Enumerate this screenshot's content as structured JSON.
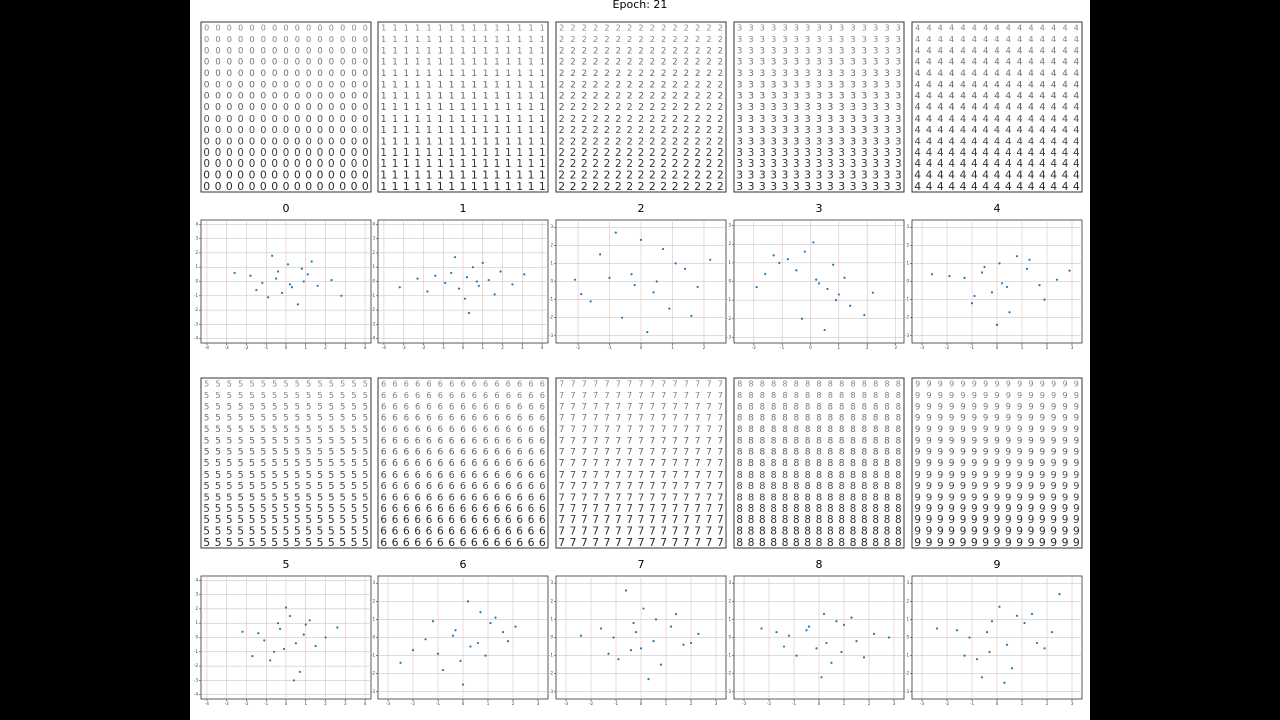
{
  "title": "Epoch: 21",
  "chart_data": [
    {
      "type": "scatter",
      "title": "0",
      "color": "#1f77b4",
      "xlim": [
        -4.3,
        4.3
      ],
      "ylim": [
        -4.3,
        4.3
      ],
      "xticks": [
        -4,
        -3,
        -2,
        -1,
        0,
        1,
        2,
        3,
        4
      ],
      "yticks": [
        -4,
        -3,
        -2,
        -1,
        0,
        1,
        2,
        3,
        4
      ],
      "grid": true,
      "x": [
        -0.5,
        0.3,
        1.1,
        -1.2,
        0.8,
        -0.2,
        1.6,
        -1.8,
        0.1,
        2.3,
        -0.9,
        0.6,
        -2.6,
        1.3,
        -0.4,
        0.2,
        -1.5,
        0.9,
        2.8,
        -0.7
      ],
      "values": [
        0.2,
        -0.4,
        0.5,
        -0.1,
        0.9,
        -0.8,
        -0.3,
        0.4,
        1.2,
        0.1,
        -1.1,
        -1.6,
        0.6,
        1.4,
        0.7,
        -0.2,
        -0.6,
        0.0,
        -1.0,
        1.8
      ]
    },
    {
      "type": "scatter",
      "title": "1",
      "color": "#1f77b4",
      "xlim": [
        -4.3,
        4.3
      ],
      "ylim": [
        -4.3,
        4.3
      ],
      "xticks": [
        -4,
        -3,
        -2,
        -1,
        0,
        1,
        2,
        3,
        4
      ],
      "yticks": [
        -4,
        -3,
        -2,
        -1,
        0,
        1,
        2,
        3,
        4
      ],
      "grid": true,
      "x": [
        0.2,
        -0.6,
        1.3,
        0.8,
        -1.4,
        1.9,
        -0.2,
        0.5,
        2.5,
        -2.3,
        1.0,
        -0.9,
        0.1,
        3.1,
        -1.8,
        0.7,
        1.6,
        -0.4,
        -3.2,
        0.3
      ],
      "values": [
        0.3,
        0.6,
        0.1,
        -0.3,
        0.4,
        0.7,
        -0.5,
        1.0,
        -0.2,
        0.2,
        1.3,
        -0.1,
        -1.2,
        0.5,
        -0.7,
        0.0,
        -0.9,
        1.7,
        -0.4,
        -2.2
      ]
    },
    {
      "type": "scatter",
      "title": "2",
      "color": "#1f77b4",
      "xlim": [
        -2.7,
        2.7
      ],
      "ylim": [
        -3.4,
        3.4
      ],
      "xticks": [
        -2,
        -1,
        0,
        1,
        2
      ],
      "yticks": [
        -3,
        -2,
        -1,
        0,
        1,
        2,
        3
      ],
      "grid": true,
      "x": [
        -0.3,
        0.4,
        1.1,
        -1.0,
        0.7,
        -1.6,
        1.8,
        0.0,
        -0.6,
        1.4,
        -2.1,
        0.9,
        -0.2,
        2.2,
        -1.3,
        0.5,
        0.2,
        -0.8,
        1.6,
        -1.9
      ],
      "values": [
        0.4,
        -0.6,
        1.0,
        0.2,
        1.8,
        -1.1,
        -0.3,
        2.3,
        -2.0,
        0.7,
        0.1,
        -1.5,
        -0.2,
        1.2,
        1.5,
        0.0,
        -2.8,
        2.7,
        -1.9,
        -0.7
      ]
    },
    {
      "type": "scatter",
      "title": "3",
      "color": "#1f77b4",
      "xlim": [
        -2.7,
        3.3
      ],
      "ylim": [
        -3.3,
        3.3
      ],
      "xticks": [
        -2,
        -1,
        0,
        1,
        2,
        3
      ],
      "yticks": [
        -3,
        -2,
        -1,
        0,
        1,
        2,
        3
      ],
      "grid": true,
      "x": [
        -0.5,
        0.2,
        1.0,
        -1.1,
        0.6,
        -0.2,
        1.4,
        -1.6,
        0.3,
        1.9,
        -0.8,
        0.9,
        -1.9,
        1.2,
        -0.3,
        0.1,
        2.2,
        -1.3,
        0.5,
        0.8
      ],
      "values": [
        0.6,
        0.1,
        -0.7,
        1.0,
        -0.4,
        1.6,
        -1.3,
        0.4,
        -0.1,
        -1.8,
        1.2,
        -1.0,
        -0.3,
        0.2,
        -2.0,
        2.1,
        -0.6,
        1.4,
        -2.6,
        0.9
      ]
    },
    {
      "type": "scatter",
      "title": "4",
      "color": "#1f77b4",
      "xlim": [
        -3.4,
        3.4
      ],
      "ylim": [
        -3.4,
        3.4
      ],
      "xticks": [
        -3,
        -2,
        -1,
        0,
        1,
        2,
        3
      ],
      "yticks": [
        -3,
        -2,
        -1,
        0,
        1,
        2,
        3
      ],
      "grid": true,
      "x": [
        -0.6,
        0.4,
        1.2,
        -1.3,
        0.1,
        -0.2,
        1.7,
        -1.9,
        0.8,
        2.4,
        -1.0,
        0.5,
        -2.6,
        1.3,
        -0.5,
        0.2,
        0.0,
        -0.9,
        1.9,
        2.9
      ],
      "values": [
        0.5,
        -0.3,
        0.7,
        0.2,
        1.0,
        -0.6,
        -0.2,
        0.3,
        1.4,
        0.1,
        -1.2,
        -1.7,
        0.4,
        1.2,
        0.8,
        -0.1,
        -2.4,
        -0.8,
        -1.0,
        0.6
      ]
    },
    {
      "type": "scatter",
      "title": "5",
      "color": "#1f77b4",
      "xlim": [
        -4.3,
        4.3
      ],
      "ylim": [
        -4.3,
        4.3
      ],
      "xticks": [
        -4,
        -3,
        -2,
        -1,
        0,
        1,
        2,
        3,
        4
      ],
      "yticks": [
        -4,
        -3,
        -2,
        -1,
        0,
        1,
        2,
        3,
        4
      ],
      "grid": true,
      "x": [
        -0.3,
        0.5,
        1.0,
        -1.1,
        0.2,
        -0.6,
        1.5,
        -1.4,
        0.0,
        2.0,
        -0.8,
        0.7,
        -2.2,
        1.2,
        -0.1,
        0.4,
        0.9,
        -0.4,
        2.6,
        -1.7
      ],
      "values": [
        0.6,
        -0.4,
        0.9,
        -0.2,
        1.5,
        -1.0,
        -0.6,
        0.3,
        2.1,
        0.0,
        -1.6,
        -2.4,
        0.4,
        1.2,
        -0.8,
        -3.0,
        0.2,
        1.0,
        0.7,
        -1.3
      ]
    },
    {
      "type": "scatter",
      "title": "6",
      "color": "#1f77b4",
      "xlim": [
        -3.4,
        3.4
      ],
      "ylim": [
        -3.4,
        3.4
      ],
      "xticks": [
        -3,
        -2,
        -1,
        0,
        1,
        2,
        3
      ],
      "yticks": [
        -3,
        -2,
        -1,
        0,
        1,
        2,
        3
      ],
      "grid": true,
      "x": [
        -0.4,
        0.3,
        1.1,
        -1.0,
        0.7,
        -0.1,
        1.6,
        -1.5,
        0.2,
        2.1,
        -0.8,
        0.6,
        -2.0,
        1.3,
        -0.3,
        0.0,
        0.9,
        -1.2,
        1.8,
        -2.5
      ],
      "values": [
        0.1,
        -0.5,
        0.8,
        -0.9,
        1.4,
        -1.3,
        0.3,
        -0.1,
        2.0,
        0.6,
        -1.8,
        -0.3,
        -0.7,
        1.1,
        0.4,
        -2.6,
        -1.0,
        0.9,
        -0.2,
        -1.4
      ]
    },
    {
      "type": "scatter",
      "title": "7",
      "color": "#1f77b4",
      "xlim": [
        -3.4,
        3.4
      ],
      "ylim": [
        -3.4,
        3.4
      ],
      "xticks": [
        -3,
        -2,
        -1,
        0,
        1,
        2,
        3
      ],
      "yticks": [
        -3,
        -2,
        -1,
        0,
        1,
        2,
        3
      ],
      "grid": true,
      "x": [
        -0.2,
        0.5,
        1.2,
        -1.1,
        0.6,
        -0.4,
        1.7,
        -1.6,
        0.1,
        2.3,
        -0.9,
        0.8,
        -2.4,
        1.4,
        -0.3,
        0.3,
        0.0,
        -1.3,
        2.0,
        -0.6
      ],
      "values": [
        0.3,
        -0.2,
        0.6,
        0.0,
        1.0,
        -0.7,
        -0.4,
        0.5,
        1.6,
        0.2,
        -1.2,
        -1.5,
        0.1,
        1.3,
        0.8,
        -2.3,
        -0.6,
        -0.9,
        -0.3,
        2.6
      ]
    },
    {
      "type": "scatter",
      "title": "8",
      "color": "#1f77b4",
      "xlim": [
        -3.4,
        3.4
      ],
      "ylim": [
        -3.4,
        3.4
      ],
      "xticks": [
        -3,
        -2,
        -1,
        0,
        1,
        2,
        3
      ],
      "yticks": [
        -3,
        -2,
        -1,
        0,
        1,
        2,
        3
      ],
      "grid": true,
      "x": [
        -0.5,
        0.3,
        1.0,
        -1.2,
        0.7,
        -0.1,
        1.5,
        -1.7,
        0.2,
        2.2,
        -0.9,
        0.5,
        -2.3,
        1.3,
        -0.4,
        0.1,
        0.9,
        -1.4,
        1.8,
        2.8
      ],
      "values": [
        0.4,
        -0.3,
        0.7,
        0.1,
        0.9,
        -0.6,
        -0.2,
        0.3,
        1.3,
        0.2,
        -1.0,
        -1.4,
        0.5,
        1.1,
        0.6,
        -2.2,
        -0.8,
        -0.5,
        -1.1,
        0.0
      ]
    },
    {
      "type": "scatter",
      "title": "9",
      "color": "#1f77b4",
      "xlim": [
        -3.4,
        3.4
      ],
      "ylim": [
        -3.4,
        3.4
      ],
      "xticks": [
        -3,
        -2,
        -1,
        0,
        1,
        2,
        3
      ],
      "yticks": [
        -3,
        -2,
        -1,
        0,
        1,
        2,
        3
      ],
      "grid": true,
      "x": [
        -0.4,
        0.4,
        1.1,
        -1.1,
        0.8,
        -0.3,
        1.6,
        -1.6,
        0.1,
        2.2,
        -0.8,
        0.6,
        -2.4,
        1.4,
        -0.2,
        0.3,
        1.9,
        -1.3,
        2.5,
        -0.6
      ],
      "values": [
        0.3,
        -0.4,
        0.8,
        0.0,
        1.2,
        -0.8,
        -0.3,
        0.4,
        1.7,
        0.3,
        -1.2,
        -1.7,
        0.5,
        1.3,
        0.9,
        -2.5,
        -0.6,
        -1.0,
        2.4,
        -2.2
      ]
    }
  ]
}
